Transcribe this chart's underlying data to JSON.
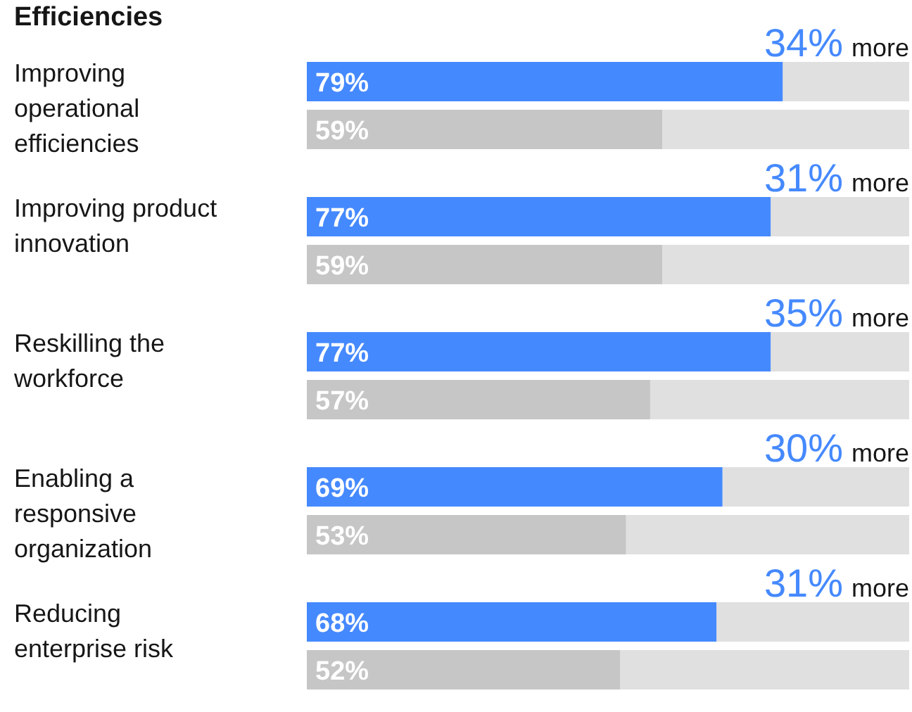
{
  "chart_data": {
    "type": "bar",
    "orientation": "horizontal",
    "title": "Efficiencies",
    "categories": [
      "Improving operational efficiencies",
      "Improving product innovation",
      "Reskilling the workforce",
      "Enabling a responsive organization",
      "Reducing enterprise risk"
    ],
    "series": [
      {
        "color": "#4589ff",
        "values": [
          79,
          77,
          77,
          69,
          68
        ],
        "value_labels": [
          "79%",
          "77%",
          "77%",
          "69%",
          "68%"
        ]
      },
      {
        "color": "#c6c6c6",
        "values": [
          59,
          59,
          57,
          53,
          52
        ],
        "value_labels": [
          "59%",
          "59%",
          "57%",
          "53%",
          "52%"
        ]
      }
    ],
    "xlim": [
      0,
      100
    ],
    "annotations": [
      "34% more",
      "31% more",
      "35% more",
      "30% more",
      "31% more"
    ]
  }
}
